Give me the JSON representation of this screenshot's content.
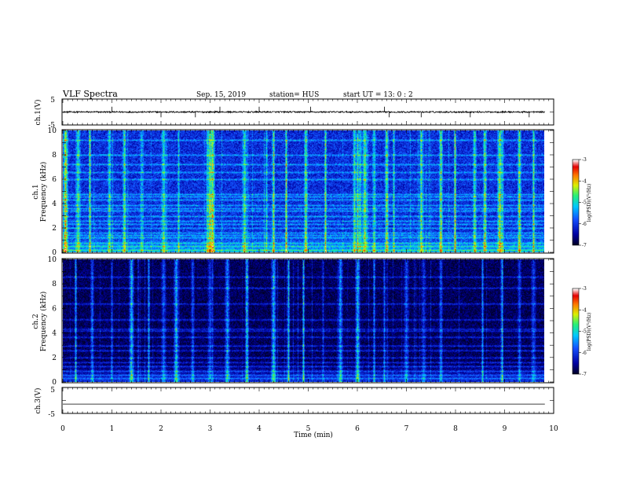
{
  "header": {
    "title": "VLF Spectra",
    "date": "Sep. 15, 2019",
    "station": "station= HUS",
    "start": "start  UT =   13: 0  : 2"
  },
  "colors": {
    "background_ch1": "#1f4fd0",
    "background_ch2": "#061034",
    "cmap": [
      "#000000",
      "#0000a0",
      "#1a60ff",
      "#00d0ff",
      "#30f070",
      "#ffff00",
      "#ff4000",
      "#ff0000",
      "#ffffff"
    ]
  },
  "chart_data": [
    {
      "type": "line",
      "panel": "ch1-waveform",
      "ylabel": "ch.1(V)",
      "ylim": [
        -5,
        5
      ],
      "ytick_labels": [
        "5",
        "-5"
      ],
      "baseline": 0,
      "noise_amplitude": 0.3,
      "spike_times_min": [
        1.0,
        2.0,
        2.7,
        3.2,
        4.0,
        5.05,
        6.55,
        6.65,
        7.3,
        8.3,
        9.5
      ]
    },
    {
      "type": "heatmap",
      "panel": "ch1-spectrogram",
      "xlabel": "Time  (min)",
      "ylabel": [
        "ch.1",
        "Frequency  (kHz)"
      ],
      "xlim": [
        0,
        10
      ],
      "ylim": [
        0,
        10
      ],
      "xtick_labels": [
        "0",
        "1",
        "2",
        "3",
        "4",
        "5",
        "6",
        "7",
        "8",
        "9",
        "10"
      ],
      "ytick_labels": [
        "0",
        "2",
        "4",
        "6",
        "8",
        "10"
      ],
      "data_extent_min": 9.82,
      "colorbar": {
        "label": "log(PSD)(V²/Hz)",
        "range": [
          -7,
          -3
        ],
        "tick_labels": [
          "-3",
          "-4",
          "-5",
          "-6",
          "-7"
        ]
      },
      "background_level": -6.1,
      "horizontal_lines_khz": [
        0.2,
        0.5,
        0.8,
        1.2,
        1.45,
        1.6,
        2.0,
        2.3,
        2.6,
        3.0,
        3.4,
        3.6,
        3.9,
        4.3,
        4.6,
        4.8,
        6.0,
        6.6,
        7.2,
        8.0,
        9.2
      ],
      "vertical_bursts_min": [
        0.05,
        0.3,
        0.55,
        0.95,
        1.25,
        1.6,
        2.05,
        2.35,
        2.95,
        3.0,
        3.05,
        3.7,
        4.15,
        4.3,
        4.55,
        4.95,
        5.35,
        5.95,
        6.0,
        6.05,
        6.15,
        6.35,
        6.6,
        6.75,
        7.3,
        7.7,
        8.0,
        8.4,
        8.6,
        8.9,
        8.95,
        9.3,
        9.6
      ]
    },
    {
      "type": "heatmap",
      "panel": "ch2-spectrogram",
      "ylabel": [
        "ch.2",
        "Frequency  (kHz)"
      ],
      "xlim": [
        0,
        10
      ],
      "ylim": [
        0,
        10
      ],
      "ytick_labels": [
        "0",
        "2",
        "4",
        "6",
        "8",
        "10"
      ],
      "data_extent_min": 9.82,
      "colorbar": {
        "label": "log(PSD)(V²/Hz)",
        "range": [
          -7,
          -3
        ],
        "tick_labels": [
          "-3",
          "-4",
          "-5",
          "-6",
          "-7"
        ]
      },
      "background_level": -6.8,
      "horizontal_lines_khz": [
        0.3,
        0.6,
        0.9,
        1.3,
        1.6,
        2.0,
        2.6,
        3.0,
        3.7,
        4.2,
        4.35,
        5.1,
        6.4,
        7.7,
        8.6
      ],
      "vertical_bursts_min": [
        0.25,
        0.6,
        1.0,
        1.4,
        1.75,
        2.05,
        2.3,
        2.65,
        3.0,
        3.05,
        3.35,
        3.75,
        4.3,
        4.6,
        4.9,
        5.3,
        5.65,
        6.0,
        6.35,
        6.55,
        7.0,
        7.35,
        7.7,
        8.55,
        8.95,
        9.3,
        9.6
      ]
    },
    {
      "type": "line",
      "panel": "ch3-waveform",
      "ylabel": "ch.3(V)",
      "ylim": [
        -5,
        5
      ],
      "ytick_labels": [
        "5",
        "-5"
      ],
      "baseline": -1.5,
      "noise_amplitude": 0
    }
  ]
}
